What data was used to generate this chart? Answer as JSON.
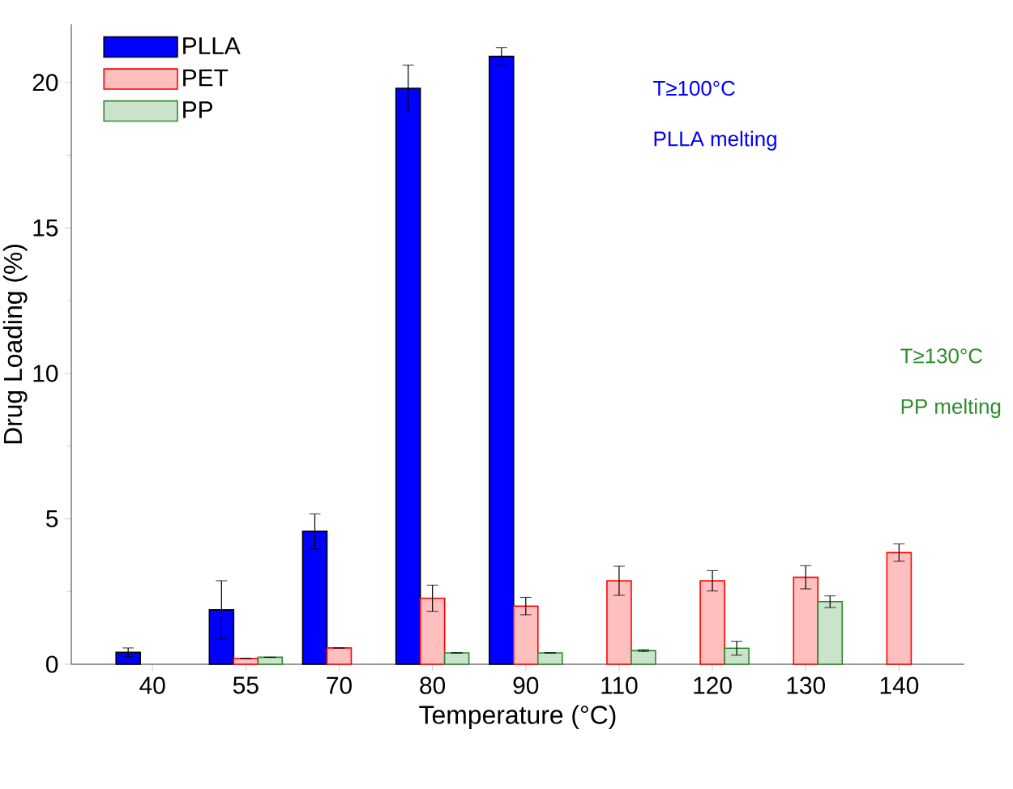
{
  "chart_data": {
    "type": "bar",
    "xlabel": "Temperature (°C)",
    "ylabel": "Drug Loading (%)",
    "categories": [
      "40",
      "55",
      "70",
      "80",
      "90",
      "110",
      "120",
      "130",
      "140"
    ],
    "series": [
      {
        "name": "PLLA",
        "color": "#0000ff",
        "values": [
          0.41,
          1.87,
          4.57,
          19.8,
          20.9,
          null,
          null,
          null,
          null
        ],
        "errors": [
          0.15,
          1.0,
          0.6,
          0.8,
          0.3,
          null,
          null,
          null,
          null
        ]
      },
      {
        "name": "PET",
        "color": "#ff0000",
        "values": [
          null,
          0.2,
          0.56,
          2.27,
          2.0,
          2.87,
          2.87,
          2.99,
          3.84
        ],
        "errors": [
          null,
          null,
          null,
          0.45,
          0.3,
          0.5,
          0.35,
          0.4,
          0.3
        ]
      },
      {
        "name": "PP",
        "color": "#2e8b2e",
        "values": [
          null,
          0.24,
          null,
          0.39,
          0.39,
          0.47,
          0.55,
          2.15,
          null
        ],
        "errors": [
          null,
          null,
          null,
          null,
          null,
          0.03,
          0.24,
          0.2,
          null
        ]
      }
    ],
    "ylim": [
      0,
      22
    ],
    "yticks": [
      0,
      5,
      10,
      15,
      20
    ],
    "legend": "top left",
    "annotations": [
      "T≥100°C",
      "PLLA melting",
      "T≥130°C",
      "PP melting"
    ]
  }
}
